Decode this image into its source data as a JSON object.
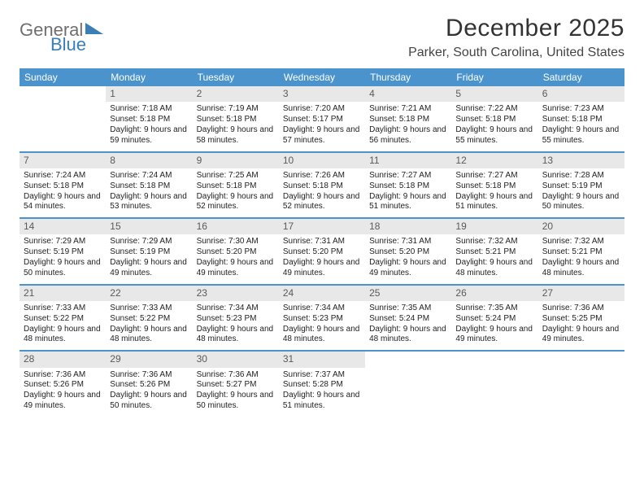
{
  "brand": {
    "part1": "General",
    "part2": "Blue"
  },
  "title": "December 2025",
  "location": "Parker, South Carolina, United States",
  "day_headers": [
    "Sunday",
    "Monday",
    "Tuesday",
    "Wednesday",
    "Thursday",
    "Friday",
    "Saturday"
  ],
  "colors": {
    "header_bg": "#4b93cd",
    "header_text": "#ffffff",
    "daynum_bg": "#e8e8e8",
    "daynum_text": "#5a5a5a",
    "brand_gray": "#6f6f6f",
    "brand_blue": "#3a7fb8",
    "separator": "#4b93cd"
  },
  "weeks": [
    [
      {
        "n": "",
        "t": ""
      },
      {
        "n": "1",
        "t": "Sunrise: 7:18 AM\nSunset: 5:18 PM\nDaylight: 9 hours and 59 minutes."
      },
      {
        "n": "2",
        "t": "Sunrise: 7:19 AM\nSunset: 5:18 PM\nDaylight: 9 hours and 58 minutes."
      },
      {
        "n": "3",
        "t": "Sunrise: 7:20 AM\nSunset: 5:17 PM\nDaylight: 9 hours and 57 minutes."
      },
      {
        "n": "4",
        "t": "Sunrise: 7:21 AM\nSunset: 5:18 PM\nDaylight: 9 hours and 56 minutes."
      },
      {
        "n": "5",
        "t": "Sunrise: 7:22 AM\nSunset: 5:18 PM\nDaylight: 9 hours and 55 minutes."
      },
      {
        "n": "6",
        "t": "Sunrise: 7:23 AM\nSunset: 5:18 PM\nDaylight: 9 hours and 55 minutes."
      }
    ],
    [
      {
        "n": "7",
        "t": "Sunrise: 7:24 AM\nSunset: 5:18 PM\nDaylight: 9 hours and 54 minutes."
      },
      {
        "n": "8",
        "t": "Sunrise: 7:24 AM\nSunset: 5:18 PM\nDaylight: 9 hours and 53 minutes."
      },
      {
        "n": "9",
        "t": "Sunrise: 7:25 AM\nSunset: 5:18 PM\nDaylight: 9 hours and 52 minutes."
      },
      {
        "n": "10",
        "t": "Sunrise: 7:26 AM\nSunset: 5:18 PM\nDaylight: 9 hours and 52 minutes."
      },
      {
        "n": "11",
        "t": "Sunrise: 7:27 AM\nSunset: 5:18 PM\nDaylight: 9 hours and 51 minutes."
      },
      {
        "n": "12",
        "t": "Sunrise: 7:27 AM\nSunset: 5:18 PM\nDaylight: 9 hours and 51 minutes."
      },
      {
        "n": "13",
        "t": "Sunrise: 7:28 AM\nSunset: 5:19 PM\nDaylight: 9 hours and 50 minutes."
      }
    ],
    [
      {
        "n": "14",
        "t": "Sunrise: 7:29 AM\nSunset: 5:19 PM\nDaylight: 9 hours and 50 minutes."
      },
      {
        "n": "15",
        "t": "Sunrise: 7:29 AM\nSunset: 5:19 PM\nDaylight: 9 hours and 49 minutes."
      },
      {
        "n": "16",
        "t": "Sunrise: 7:30 AM\nSunset: 5:20 PM\nDaylight: 9 hours and 49 minutes."
      },
      {
        "n": "17",
        "t": "Sunrise: 7:31 AM\nSunset: 5:20 PM\nDaylight: 9 hours and 49 minutes."
      },
      {
        "n": "18",
        "t": "Sunrise: 7:31 AM\nSunset: 5:20 PM\nDaylight: 9 hours and 49 minutes."
      },
      {
        "n": "19",
        "t": "Sunrise: 7:32 AM\nSunset: 5:21 PM\nDaylight: 9 hours and 48 minutes."
      },
      {
        "n": "20",
        "t": "Sunrise: 7:32 AM\nSunset: 5:21 PM\nDaylight: 9 hours and 48 minutes."
      }
    ],
    [
      {
        "n": "21",
        "t": "Sunrise: 7:33 AM\nSunset: 5:22 PM\nDaylight: 9 hours and 48 minutes."
      },
      {
        "n": "22",
        "t": "Sunrise: 7:33 AM\nSunset: 5:22 PM\nDaylight: 9 hours and 48 minutes."
      },
      {
        "n": "23",
        "t": "Sunrise: 7:34 AM\nSunset: 5:23 PM\nDaylight: 9 hours and 48 minutes."
      },
      {
        "n": "24",
        "t": "Sunrise: 7:34 AM\nSunset: 5:23 PM\nDaylight: 9 hours and 48 minutes."
      },
      {
        "n": "25",
        "t": "Sunrise: 7:35 AM\nSunset: 5:24 PM\nDaylight: 9 hours and 48 minutes."
      },
      {
        "n": "26",
        "t": "Sunrise: 7:35 AM\nSunset: 5:24 PM\nDaylight: 9 hours and 49 minutes."
      },
      {
        "n": "27",
        "t": "Sunrise: 7:36 AM\nSunset: 5:25 PM\nDaylight: 9 hours and 49 minutes."
      }
    ],
    [
      {
        "n": "28",
        "t": "Sunrise: 7:36 AM\nSunset: 5:26 PM\nDaylight: 9 hours and 49 minutes."
      },
      {
        "n": "29",
        "t": "Sunrise: 7:36 AM\nSunset: 5:26 PM\nDaylight: 9 hours and 50 minutes."
      },
      {
        "n": "30",
        "t": "Sunrise: 7:36 AM\nSunset: 5:27 PM\nDaylight: 9 hours and 50 minutes."
      },
      {
        "n": "31",
        "t": "Sunrise: 7:37 AM\nSunset: 5:28 PM\nDaylight: 9 hours and 51 minutes."
      },
      {
        "n": "",
        "t": ""
      },
      {
        "n": "",
        "t": ""
      },
      {
        "n": "",
        "t": ""
      }
    ]
  ]
}
